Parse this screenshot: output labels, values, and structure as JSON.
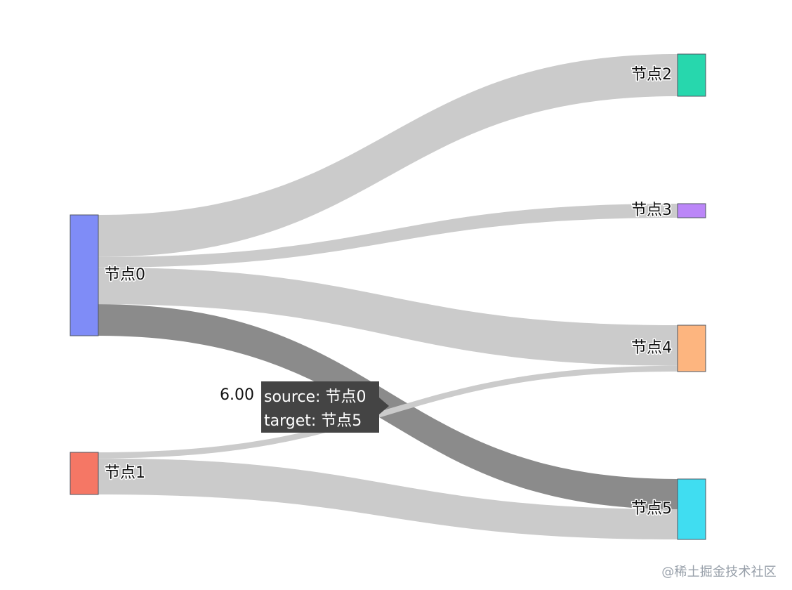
{
  "chart_data": {
    "type": "sankey",
    "nodes": [
      {
        "name": "节点0",
        "color": "#7f8cf7"
      },
      {
        "name": "节点1",
        "color": "#f57765"
      },
      {
        "name": "节点2",
        "color": "#27d7ad"
      },
      {
        "name": "节点3",
        "color": "#bb86f8"
      },
      {
        "name": "节点4",
        "color": "#fdb57f"
      },
      {
        "name": "节点5",
        "color": "#40ddf1"
      }
    ],
    "links": [
      {
        "source": "节点0",
        "target": "节点2",
        "value": 8
      },
      {
        "source": "节点0",
        "target": "节点3",
        "value": 2
      },
      {
        "source": "节点0",
        "target": "节点4",
        "value": 7
      },
      {
        "source": "节点0",
        "target": "节点5",
        "value": 6
      },
      {
        "source": "节点1",
        "target": "节点4",
        "value": 1
      },
      {
        "source": "节点1",
        "target": "节点5",
        "value": 6
      }
    ],
    "hovered_link": 3
  },
  "hover": {
    "value": "6.00",
    "source": "source: 节点0",
    "target": "target: 节点5"
  },
  "watermark": "@稀土掘金技术社区"
}
